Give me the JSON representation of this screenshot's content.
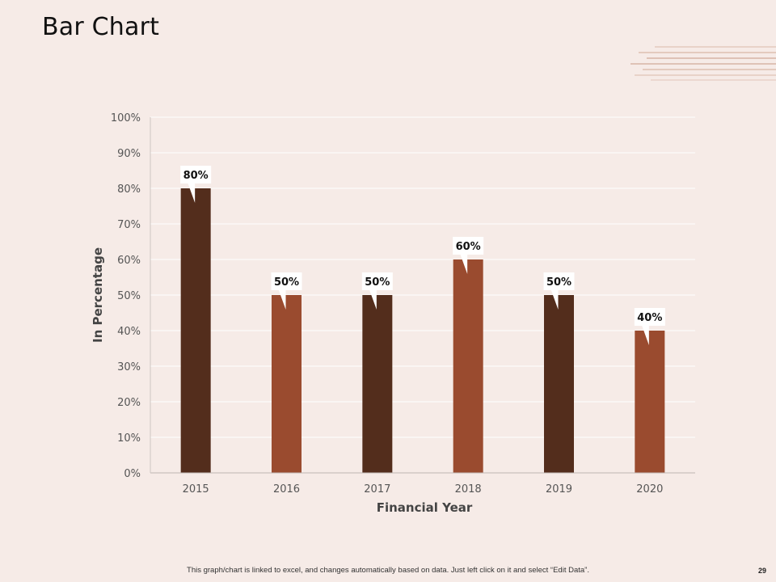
{
  "slide": {
    "title": "Bar Chart",
    "footer": "This graph/chart is linked to excel, and changes automatically based on data. Just left click on it and select “Edit Data”.",
    "page_number": "29"
  },
  "colors": {
    "background": "#f6ebe7",
    "dark_bar": "#532d1c",
    "light_bar": "#9a4b2f"
  },
  "chart_data": {
    "type": "bar",
    "title": "",
    "xlabel": "Financial Year",
    "ylabel": "In Percentage",
    "categories": [
      "2015",
      "2016",
      "2017",
      "2018",
      "2019",
      "2020"
    ],
    "values": [
      80,
      50,
      50,
      60,
      50,
      40
    ],
    "data_labels": [
      "80%",
      "50%",
      "50%",
      "60%",
      "50%",
      "40%"
    ],
    "bar_colors": [
      "#532d1c",
      "#9a4b2f",
      "#532d1c",
      "#9a4b2f",
      "#532d1c",
      "#9a4b2f"
    ],
    "ylim": [
      0,
      100
    ],
    "yticks": [
      0,
      10,
      20,
      30,
      40,
      50,
      60,
      70,
      80,
      90,
      100
    ],
    "ytick_labels": [
      "0%",
      "10%",
      "20%",
      "30%",
      "40%",
      "50%",
      "60%",
      "70%",
      "80%",
      "90%",
      "100%"
    ],
    "grid": true,
    "legend": "none"
  }
}
